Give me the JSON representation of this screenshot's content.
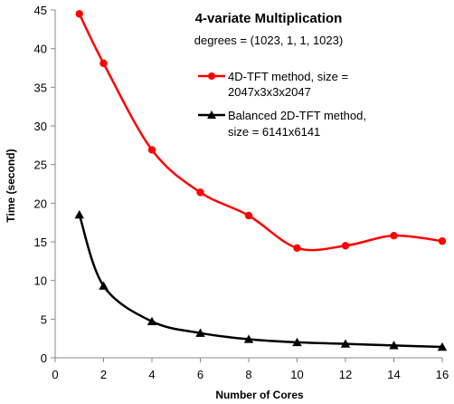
{
  "chart_data": {
    "type": "line",
    "title": "4-variate Multiplication",
    "subtitle": "degrees =  (1023, 1, 1, 1023)",
    "xlabel": "Number of Cores",
    "ylabel": "Time (second)",
    "xlim": [
      0,
      16
    ],
    "ylim": [
      0,
      45
    ],
    "xticks": [
      0,
      2,
      4,
      6,
      8,
      10,
      12,
      14,
      16
    ],
    "yticks": [
      0,
      5,
      10,
      15,
      20,
      25,
      30,
      35,
      40,
      45
    ],
    "grid": false,
    "legend_position": "top-right",
    "series": [
      {
        "name_line1": "4D-TFT method, size =",
        "name_line2": "2047x3x3x2047",
        "color": "#ff0000",
        "marker": "circle",
        "x": [
          1,
          2,
          4,
          6,
          8,
          10,
          12,
          14,
          16
        ],
        "y": [
          44.5,
          38.1,
          26.9,
          21.4,
          18.4,
          14.2,
          14.5,
          15.8,
          15.1
        ]
      },
      {
        "name_line1": "Balanced 2D-TFT method,",
        "name_line2": "size = 6141x6141",
        "color": "#000000",
        "marker": "triangle",
        "x": [
          1,
          2,
          4,
          6,
          8,
          10,
          12,
          14,
          16
        ],
        "y": [
          18.5,
          9.3,
          4.7,
          3.2,
          2.4,
          2.0,
          1.8,
          1.6,
          1.4
        ]
      }
    ]
  }
}
